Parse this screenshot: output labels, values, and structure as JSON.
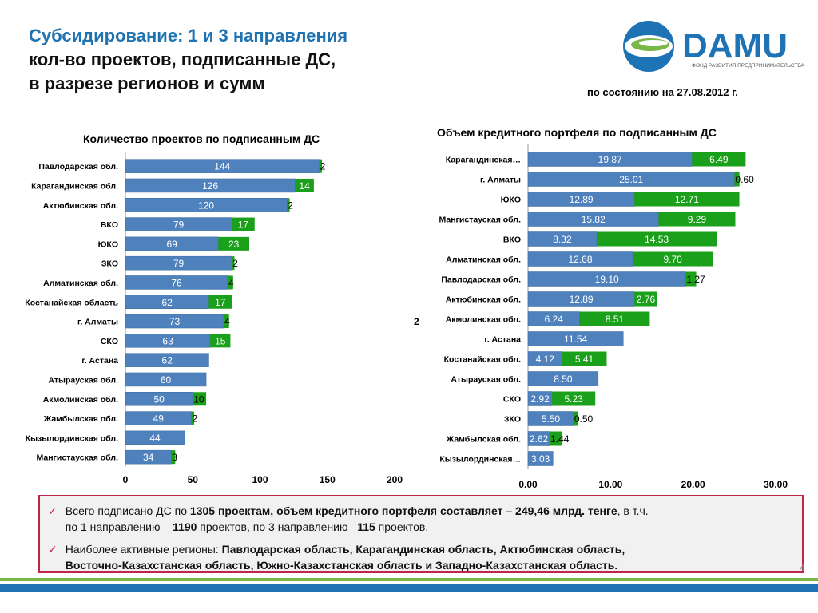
{
  "header": {
    "title_line1": "Субсидирование: 1 и 3 направления",
    "title_line2": "кол-во проектов, подписанные ДС,",
    "title_line3": "в разрезе регионов и сумм",
    "date": "по состоянию на 27.08.2012 г."
  },
  "logo": {
    "text": "DAMU",
    "tagline": "ФОНД РАЗВИТИЯ ПРЕДПРИНИМАТЕЛЬСТВА",
    "colors": {
      "blue": "#1e73b5",
      "green": "#7ab648"
    }
  },
  "colors": {
    "series1": "#4f81bd",
    "series2": "#1aa01a",
    "series1_border": "#3a6aa0",
    "accent": "#c0264a"
  },
  "chart_data": [
    {
      "type": "bar",
      "orientation": "horizontal",
      "stacked": true,
      "title": "Количество проектов по подписанным ДС",
      "categories": [
        "Павлодарская обл.",
        "Карагандинская обл.",
        "Актюбинская обл.",
        "ВКО",
        "ЮКО",
        "ЗКО",
        "Алматинская обл.",
        "Костанайская область",
        "г. Алматы",
        "СКО",
        "г. Астана",
        "Атырауская обл.",
        "Акмолинская обл.",
        "Жамбылская обл.",
        "Кызылординская обл.",
        "Мангистауская обл."
      ],
      "series": [
        {
          "values": [
            144,
            126,
            120,
            79,
            69,
            79,
            76,
            62,
            73,
            63,
            62,
            60,
            50,
            49,
            44,
            34
          ]
        },
        {
          "values": [
            2,
            14,
            2,
            17,
            23,
            2,
            4,
            17,
            4,
            15,
            0,
            0,
            10,
            2,
            0,
            3
          ]
        }
      ],
      "xlim": [
        0,
        200
      ],
      "xticks": [
        "0",
        "50",
        "100",
        "150",
        "200"
      ]
    },
    {
      "type": "bar",
      "orientation": "horizontal",
      "stacked": true,
      "title": "Объем кредитного портфеля по подписанным ДС",
      "categories": [
        "Карагандинская…",
        "г. Алматы",
        "ЮКО",
        "Мангистауская обл.",
        "ВКО",
        "Алматинская обл.",
        "Павлодарская обл.",
        "Актюбинская обл.",
        "Акмолинская обл.",
        "г. Астана",
        "Костанайская обл.",
        "Атырауская обл.",
        "СКО",
        "ЗКО",
        "Жамбылская обл.",
        "Кызылординская…"
      ],
      "series": [
        {
          "values": [
            19.87,
            25.01,
            12.89,
            15.82,
            8.32,
            12.68,
            19.1,
            12.89,
            6.24,
            11.54,
            4.12,
            8.5,
            2.92,
            5.5,
            2.62,
            3.03
          ]
        },
        {
          "values": [
            6.49,
            0.6,
            12.71,
            9.29,
            14.53,
            9.7,
            1.27,
            2.76,
            8.51,
            0,
            5.41,
            0,
            5.23,
            0.5,
            1.44,
            0
          ]
        }
      ],
      "labels1": [
        "19.87",
        "25.01",
        "12.89",
        "15.82",
        "8.32",
        "12.68",
        "19.10",
        "12.89",
        "6.24",
        "11.54",
        "4.12",
        "8.50",
        "2.92",
        "5.50",
        "2.62",
        "3.03"
      ],
      "labels2": [
        "6.49",
        "0.60",
        "12.71",
        "9.29",
        "14.53",
        "9.70",
        "1.27",
        "2.76",
        "8.51",
        "",
        "5.41",
        "",
        "5.23",
        "0.50",
        "1.44",
        ""
      ],
      "xlim": [
        0,
        30
      ],
      "xticks": [
        "0.00",
        "10.00",
        "20.00",
        "30.00"
      ]
    }
  ],
  "stray_label": "2",
  "notes": {
    "check": "✓",
    "n1_a": " Всего подписано ДС по ",
    "n1_b": "1305 проектам, объем кредитного портфеля составляет – 249,46 млрд. тенге",
    "n1_c": ", в т.ч.",
    "n1_d": "по 1 направлению – ",
    "n1_e": "1190",
    "n1_f": " проектов, по 3 направлению –",
    "n1_g": "115",
    "n1_h": " проектов.",
    "n2_a": "Наиболее активные регионы: ",
    "n2_b": "Павлодарская область, Карагандинская область, Актюбинская область,",
    "n2_c": "Восточно-Казахстанская область, Южно-Казахстанская область и Западно-Казахстанская область."
  },
  "page_number": "4"
}
